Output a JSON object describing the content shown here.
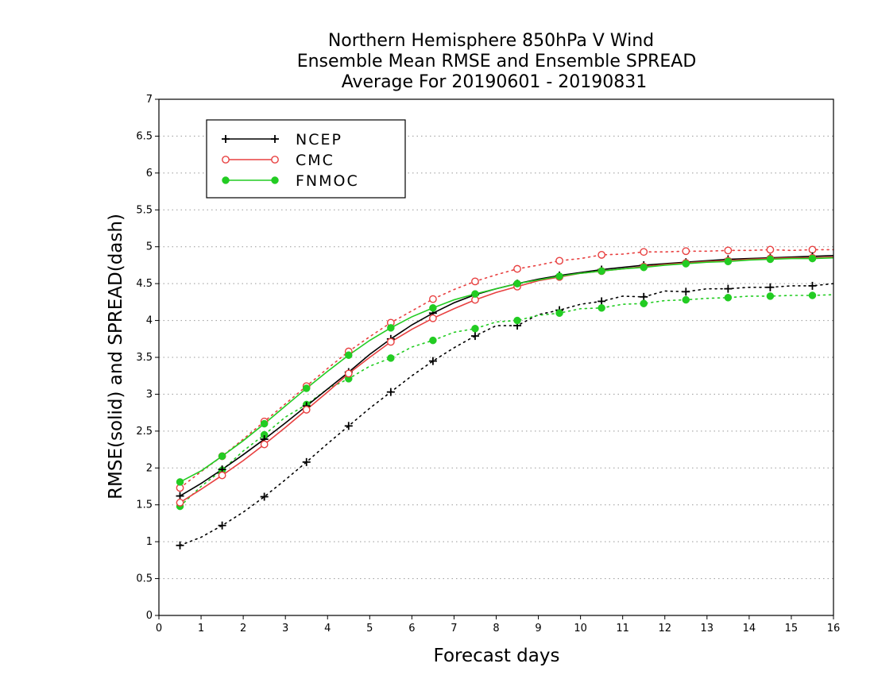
{
  "chart_data": {
    "type": "line",
    "title": [
      "Northern Hemisphere 850hPa V Wind",
      "Ensemble Mean RMSE and Ensemble SPREAD",
      "Average For 20190601 - 20190831"
    ],
    "xlabel": "Forecast days",
    "ylabel": "RMSE(solid) and SPREAD(dash)",
    "xlim": [
      0,
      16
    ],
    "ylim": [
      0,
      7
    ],
    "xticks": [
      "0",
      "1",
      "2",
      "3",
      "4",
      "5",
      "6",
      "7",
      "8",
      "9",
      "10",
      "11",
      "12",
      "13",
      "14",
      "15",
      "16"
    ],
    "yticks": [
      "0",
      "0.5",
      "1",
      "1.5",
      "2",
      "2.5",
      "3",
      "3.5",
      "4",
      "4.5",
      "5",
      "5.5",
      "6",
      "6.5",
      "7"
    ],
    "grid": "horizontal dotted",
    "legend_position": "top-left",
    "x": [
      0.5,
      1,
      1.5,
      2,
      2.5,
      3,
      3.5,
      4,
      4.5,
      5,
      5.5,
      6,
      6.5,
      7,
      7.5,
      8,
      8.5,
      9,
      9.5,
      10,
      10.5,
      11,
      11.5,
      12,
      12.5,
      13,
      13.5,
      14,
      14.5,
      15,
      15.5,
      16
    ],
    "series": [
      {
        "name": "NCEP",
        "color": "#000000",
        "marker": "plus",
        "rmse": [
          1.62,
          1.79,
          1.98,
          2.18,
          2.39,
          2.61,
          2.84,
          3.07,
          3.3,
          3.54,
          3.75,
          3.94,
          4.1,
          4.24,
          4.35,
          4.43,
          4.5,
          4.56,
          4.61,
          4.65,
          4.69,
          4.72,
          4.75,
          4.77,
          4.79,
          4.81,
          4.83,
          4.84,
          4.85,
          4.86,
          4.87,
          4.88
        ],
        "spread": [
          0.95,
          1.06,
          1.22,
          1.4,
          1.61,
          1.84,
          2.08,
          2.33,
          2.57,
          2.81,
          3.03,
          3.25,
          3.45,
          3.63,
          3.79,
          3.93,
          3.93,
          4.08,
          4.14,
          4.22,
          4.26,
          4.33,
          4.32,
          4.4,
          4.39,
          4.43,
          4.43,
          4.45,
          4.45,
          4.47,
          4.47,
          4.5
        ]
      },
      {
        "name": "CMC",
        "color": "#e84040",
        "marker": "open-circle",
        "rmse": [
          1.53,
          1.71,
          1.9,
          2.1,
          2.32,
          2.55,
          2.79,
          3.03,
          3.28,
          3.5,
          3.71,
          3.88,
          4.03,
          4.16,
          4.28,
          4.38,
          4.46,
          4.54,
          4.59,
          4.64,
          4.67,
          4.7,
          4.73,
          4.76,
          4.78,
          4.8,
          4.81,
          4.83,
          4.84,
          4.85,
          4.85,
          4.86
        ],
        "spread": [
          1.73,
          1.95,
          2.16,
          2.39,
          2.63,
          2.87,
          3.11,
          3.35,
          3.58,
          3.78,
          3.97,
          4.13,
          4.29,
          4.42,
          4.53,
          4.62,
          4.7,
          4.75,
          4.81,
          4.84,
          4.89,
          4.9,
          4.93,
          4.93,
          4.94,
          4.94,
          4.95,
          4.95,
          4.96,
          4.95,
          4.96,
          4.96
        ]
      },
      {
        "name": "FNMOC",
        "color": "#22cc22",
        "marker": "filled-circle",
        "rmse": [
          1.81,
          1.96,
          2.16,
          2.37,
          2.6,
          2.84,
          3.08,
          3.31,
          3.53,
          3.73,
          3.9,
          4.05,
          4.17,
          4.28,
          4.36,
          4.43,
          4.5,
          4.55,
          4.6,
          4.64,
          4.67,
          4.7,
          4.72,
          4.75,
          4.77,
          4.79,
          4.8,
          4.82,
          4.83,
          4.84,
          4.84,
          4.85
        ],
        "spread": [
          1.48,
          1.75,
          1.97,
          2.23,
          2.45,
          2.69,
          2.86,
          3.07,
          3.21,
          3.38,
          3.49,
          3.64,
          3.73,
          3.84,
          3.89,
          3.98,
          4.0,
          4.07,
          4.1,
          4.16,
          4.17,
          4.22,
          4.23,
          4.27,
          4.28,
          4.3,
          4.31,
          4.33,
          4.33,
          4.34,
          4.34,
          4.35
        ]
      }
    ]
  }
}
